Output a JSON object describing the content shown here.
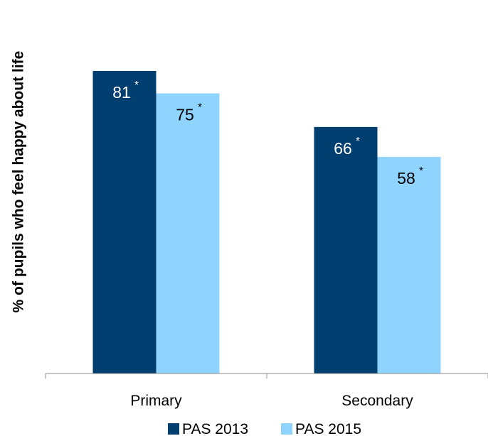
{
  "chart_data": {
    "type": "bar",
    "ylabel": "% of pupils who feel happy about life",
    "categories": [
      "Primary",
      "Secondary"
    ],
    "series": [
      {
        "name": "PAS 2013",
        "values": [
          81,
          66
        ],
        "labels": [
          "81",
          "66"
        ],
        "marks": [
          "*",
          "*"
        ],
        "color": "#003f6f"
      },
      {
        "name": "PAS 2015",
        "values": [
          75,
          58
        ],
        "labels": [
          "75",
          "58"
        ],
        "marks": [
          "*",
          "*"
        ],
        "color": "#8fd3ff"
      }
    ],
    "ylim": [
      0,
      100
    ],
    "grid": false,
    "legend_position": "bottom"
  }
}
